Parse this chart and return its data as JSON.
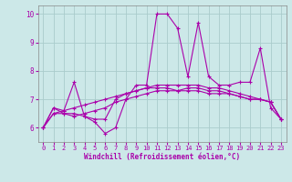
{
  "xlabel": "Windchill (Refroidissement éolien,°C)",
  "background_color": "#cce8e8",
  "grid_color": "#aacccc",
  "line_color": "#aa00aa",
  "tick_color": "#aa00aa",
  "xlim": [
    -0.5,
    23.5
  ],
  "ylim": [
    5.5,
    10.3
  ],
  "yticks": [
    6,
    7,
    8,
    9,
    10
  ],
  "xticks": [
    0,
    1,
    2,
    3,
    4,
    5,
    6,
    7,
    8,
    9,
    10,
    11,
    12,
    13,
    14,
    15,
    16,
    17,
    18,
    19,
    20,
    21,
    22,
    23
  ],
  "series": [
    [
      6.0,
      6.7,
      6.6,
      7.6,
      6.4,
      6.2,
      5.8,
      6.0,
      7.0,
      7.5,
      7.5,
      10.0,
      10.0,
      9.5,
      7.8,
      9.7,
      7.8,
      7.5,
      7.5,
      7.6,
      7.6,
      8.8,
      6.7,
      6.3
    ],
    [
      6.0,
      6.7,
      6.5,
      6.5,
      6.4,
      6.3,
      6.3,
      7.0,
      7.2,
      7.3,
      7.4,
      7.4,
      7.4,
      7.3,
      7.3,
      7.3,
      7.2,
      7.2,
      7.2,
      7.1,
      7.0,
      7.0,
      6.9,
      6.3
    ],
    [
      6.0,
      6.5,
      6.5,
      6.4,
      6.5,
      6.6,
      6.7,
      6.9,
      7.0,
      7.1,
      7.2,
      7.3,
      7.3,
      7.3,
      7.4,
      7.4,
      7.3,
      7.3,
      7.2,
      7.1,
      7.0,
      7.0,
      6.9,
      6.3
    ],
    [
      6.0,
      6.5,
      6.6,
      6.7,
      6.8,
      6.9,
      7.0,
      7.1,
      7.2,
      7.3,
      7.4,
      7.5,
      7.5,
      7.5,
      7.5,
      7.5,
      7.4,
      7.4,
      7.3,
      7.2,
      7.1,
      7.0,
      6.9,
      6.3
    ]
  ]
}
